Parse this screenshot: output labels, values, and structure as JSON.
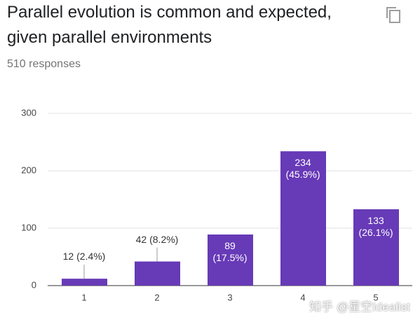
{
  "chart_data": {
    "type": "bar",
    "title": "Parallel evolution is common and expected, given parallel environments",
    "subtitle": "510 responses",
    "categories": [
      "1",
      "2",
      "3",
      "4",
      "5"
    ],
    "values": [
      12,
      42,
      89,
      234,
      133
    ],
    "value_labels": [
      "12 (2.4%)",
      "42 (8.2%)",
      "89 (17.5%)",
      "234 (45.9%)",
      "133 (26.1%)"
    ],
    "color": "#673ab7",
    "ylim": [
      0,
      300
    ],
    "yticks": [
      0,
      100,
      200,
      300
    ],
    "grid": true,
    "watermark": "知乎 @星空Idealist"
  }
}
